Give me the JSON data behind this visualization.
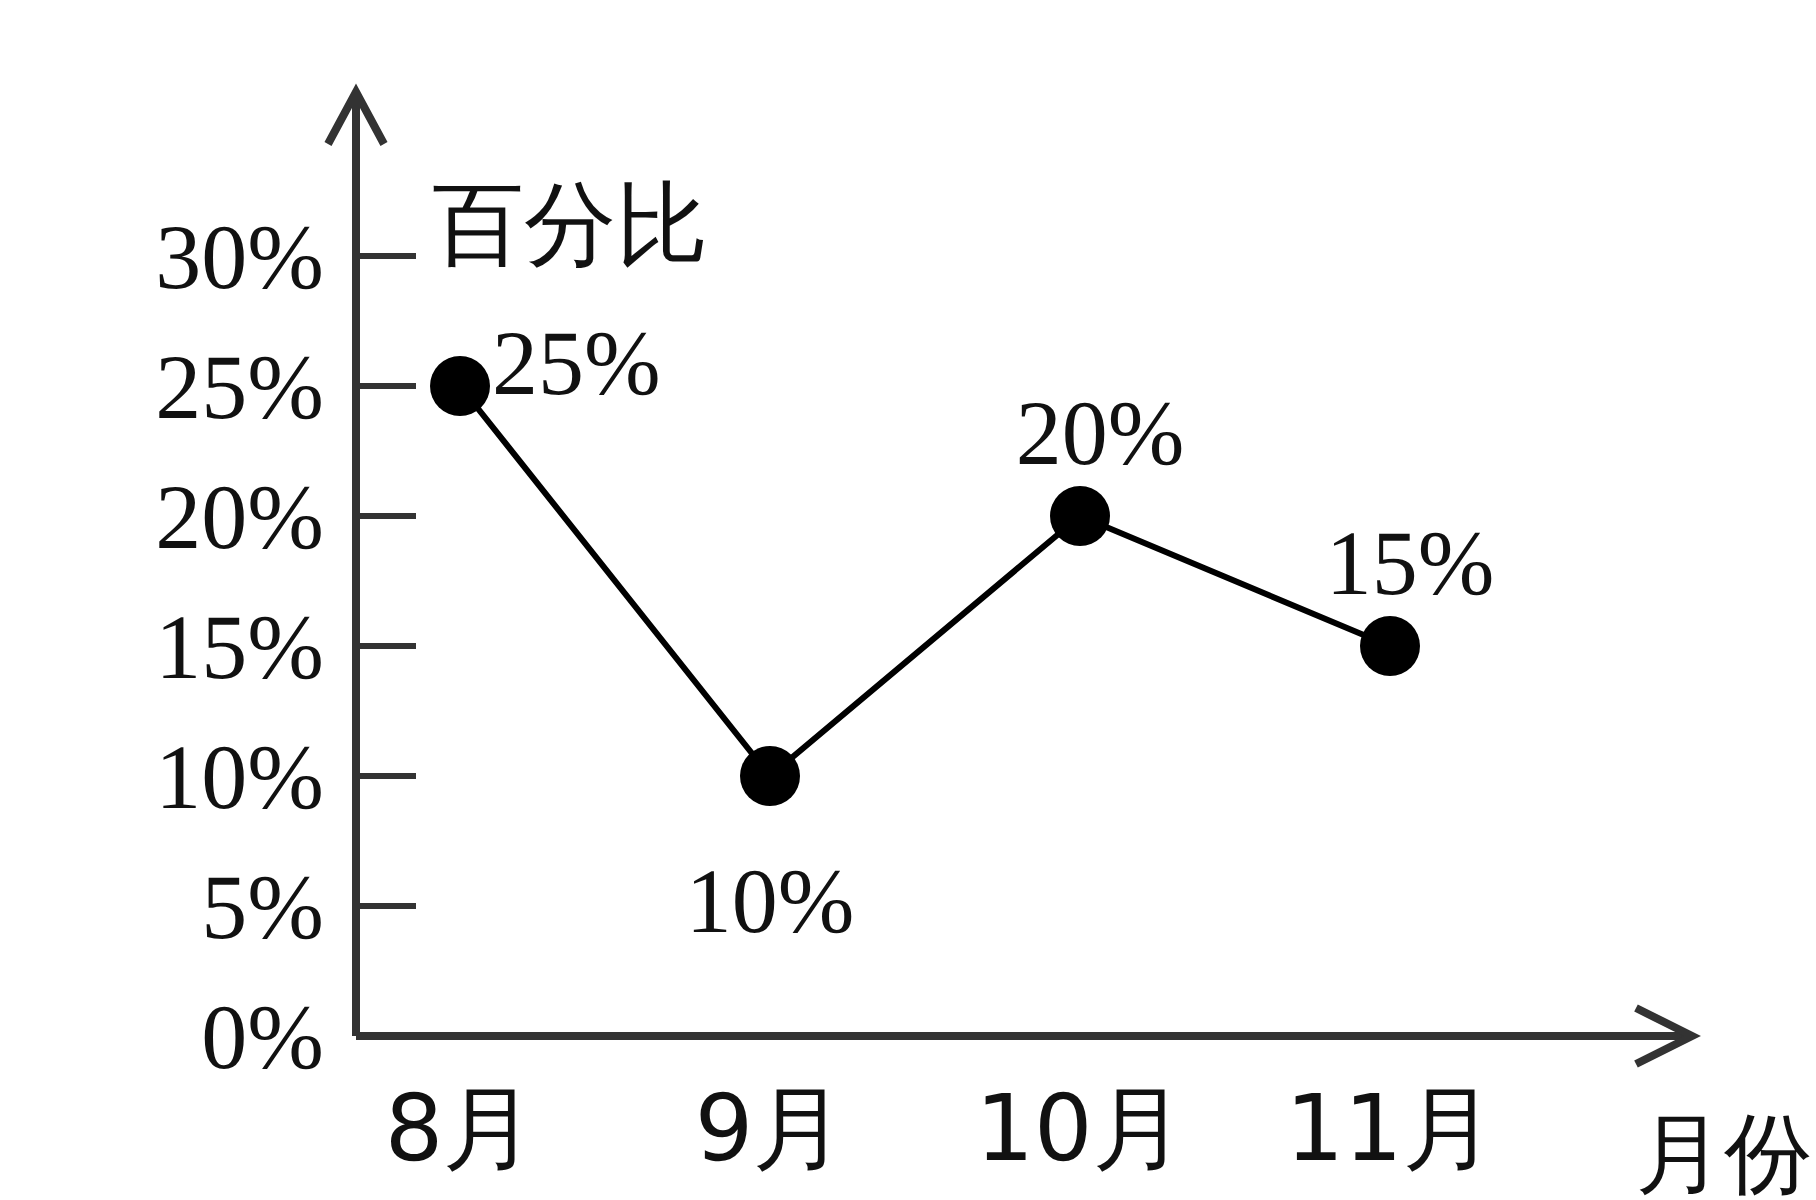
{
  "chart_data": {
    "type": "line",
    "xlabel": "月份",
    "ylabel": "百分比",
    "categories": [
      "8月",
      "9月",
      "10月",
      "11月"
    ],
    "values": [
      25,
      10,
      20,
      15
    ],
    "value_labels": [
      "25%",
      "10%",
      "20%",
      "15%"
    ],
    "color": "#000000",
    "marker": "circle",
    "line_style": "solid",
    "ylim": [
      0,
      30
    ],
    "yticks": [
      {
        "value": 0,
        "label": "0%"
      },
      {
        "value": 5,
        "label": "5%"
      },
      {
        "value": 10,
        "label": "10%"
      },
      {
        "value": 15,
        "label": "15%"
      },
      {
        "value": 20,
        "label": "20%"
      },
      {
        "value": 25,
        "label": "25%"
      },
      {
        "value": 30,
        "label": "30%"
      }
    ]
  }
}
